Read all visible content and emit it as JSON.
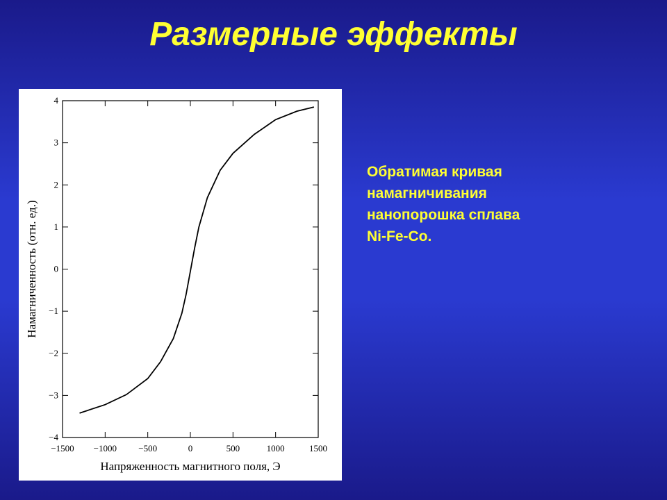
{
  "slide_title": "Размерные эффекты",
  "description": [
    "Обратимая кривая",
    "намагничивания",
    "нанопорошка сплава",
    "Ni-Fe-Co."
  ],
  "chart_data": {
    "type": "line",
    "xlabel": "Напряженность магнитного поля, Э",
    "ylabel": "Намагниченность (отн. ед.)",
    "xlim": [
      -1500,
      1500
    ],
    "ylim": [
      -4,
      4
    ],
    "xticks": [
      {
        "value": -1500,
        "label": "−1500"
      },
      {
        "value": -1000,
        "label": "−1000"
      },
      {
        "value": -500,
        "label": "−500"
      },
      0,
      500,
      1000,
      1500
    ],
    "yticks": [
      {
        "value": -4,
        "label": "−4"
      },
      {
        "value": -3,
        "label": "−3"
      },
      {
        "value": -2,
        "label": "−2"
      },
      {
        "value": -1,
        "label": "−1"
      },
      0,
      1,
      2,
      3,
      4
    ],
    "series": [
      {
        "color": "#000000",
        "x": [
          -1300,
          -1000,
          -750,
          -500,
          -350,
          -200,
          -100,
          -50,
          0,
          50,
          100,
          200,
          350,
          500,
          750,
          1000,
          1250,
          1450
        ],
        "values": [
          -3.42,
          -3.22,
          -2.98,
          -2.6,
          -2.2,
          -1.65,
          -1.05,
          -0.6,
          -0.05,
          0.5,
          1.0,
          1.7,
          2.35,
          2.75,
          3.2,
          3.55,
          3.75,
          3.85
        ]
      }
    ]
  }
}
